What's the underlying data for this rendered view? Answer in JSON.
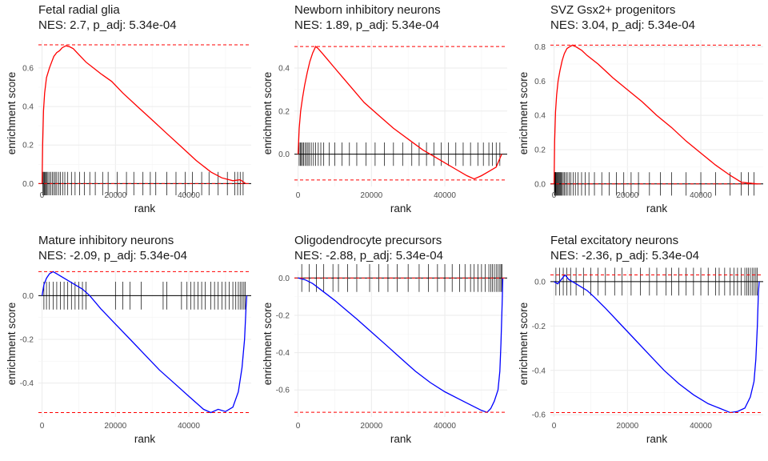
{
  "chart_data": [
    {
      "type": "line",
      "title": "Fetal radial glia",
      "subtitle": "NES: 2.7, p_adj: 5.34e-04",
      "xlabel": "rank",
      "ylabel": "enrichment score",
      "xlim": [
        -1000,
        57000
      ],
      "ylim": [
        -0.015,
        0.745
      ],
      "xticks": [
        0,
        20000,
        40000
      ],
      "yticks": [
        0.0,
        0.2,
        0.4,
        0.6
      ],
      "ytick_labels": [
        "0.0",
        "0.2",
        "0.4",
        "0.6"
      ],
      "min_es": 0.0,
      "max_es": 0.72,
      "curve_color": "#ff0000",
      "curve": [
        [
          0,
          0.0
        ],
        [
          150,
          0.2
        ],
        [
          400,
          0.38
        ],
        [
          700,
          0.47
        ],
        [
          1200,
          0.55
        ],
        [
          2000,
          0.6
        ],
        [
          2600,
          0.63
        ],
        [
          3200,
          0.66
        ],
        [
          4000,
          0.68
        ],
        [
          4800,
          0.69
        ],
        [
          5500,
          0.705
        ],
        [
          6500,
          0.715
        ],
        [
          7500,
          0.71
        ],
        [
          8500,
          0.7
        ],
        [
          10000,
          0.67
        ],
        [
          12000,
          0.63
        ],
        [
          14000,
          0.6
        ],
        [
          16000,
          0.57
        ],
        [
          19000,
          0.53
        ],
        [
          22000,
          0.47
        ],
        [
          26000,
          0.4
        ],
        [
          30000,
          0.33
        ],
        [
          34000,
          0.26
        ],
        [
          38000,
          0.19
        ],
        [
          42000,
          0.12
        ],
        [
          46000,
          0.06
        ],
        [
          49000,
          0.03
        ],
        [
          52000,
          0.015
        ],
        [
          54000,
          0.02
        ],
        [
          55500,
          0.0
        ]
      ],
      "gene_ranks": [
        200,
        400,
        600,
        800,
        1000,
        1300,
        1600,
        2000,
        2400,
        2800,
        3200,
        3600,
        4000,
        4500,
        5000,
        5600,
        6200,
        7000,
        8000,
        9000,
        10200,
        11500,
        13000,
        14500,
        16500,
        18000,
        20500,
        23000,
        25000,
        27500,
        29500,
        31000,
        34000,
        36500,
        39000,
        41000,
        43500,
        45500,
        48000,
        50500,
        52500,
        53300,
        54000,
        54800
      ]
    },
    {
      "type": "line",
      "title": "Newborn inhibitory neurons",
      "subtitle": "NES: 1.89, p_adj: 5.34e-04",
      "xlabel": "rank",
      "ylabel": "enrichment score",
      "xlim": [
        -1000,
        57000
      ],
      "ylim": [
        -0.15,
        0.53
      ],
      "xticks": [
        0,
        20000,
        40000
      ],
      "yticks": [
        0.0,
        0.2,
        0.4
      ],
      "ytick_labels": [
        "0.0",
        "0.2",
        "0.4"
      ],
      "min_es": -0.12,
      "max_es": 0.5,
      "curve_color": "#ff0000",
      "curve": [
        [
          0,
          0.0
        ],
        [
          300,
          0.12
        ],
        [
          700,
          0.2
        ],
        [
          1200,
          0.26
        ],
        [
          1800,
          0.32
        ],
        [
          2500,
          0.38
        ],
        [
          3200,
          0.43
        ],
        [
          4000,
          0.47
        ],
        [
          4800,
          0.5
        ],
        [
          5500,
          0.49
        ],
        [
          6500,
          0.47
        ],
        [
          8000,
          0.44
        ],
        [
          10000,
          0.4
        ],
        [
          12000,
          0.36
        ],
        [
          15000,
          0.3
        ],
        [
          18000,
          0.24
        ],
        [
          22000,
          0.18
        ],
        [
          26000,
          0.12
        ],
        [
          30000,
          0.07
        ],
        [
          34000,
          0.02
        ],
        [
          37000,
          -0.01
        ],
        [
          40000,
          -0.04
        ],
        [
          43000,
          -0.07
        ],
        [
          46000,
          -0.1
        ],
        [
          48000,
          -0.115
        ],
        [
          50000,
          -0.1
        ],
        [
          52000,
          -0.08
        ],
        [
          54000,
          -0.06
        ],
        [
          55500,
          0.0
        ]
      ],
      "gene_ranks": [
        300,
        600,
        900,
        1200,
        1500,
        1900,
        2300,
        2700,
        3100,
        3600,
        4200,
        4800,
        5500,
        6200,
        7000,
        8500,
        10000,
        12000,
        14000,
        16000,
        18500,
        21000,
        23500,
        26000,
        28500,
        31000,
        33000,
        35000,
        37000,
        39000,
        41000,
        43000,
        45000,
        47000,
        49000,
        50500,
        52000,
        53000,
        54000,
        55000
      ]
    },
    {
      "type": "line",
      "title": "SVZ Gsx2+ progenitors",
      "subtitle": "NES: 3.04, p_adj: 5.34e-04",
      "xlabel": "rank",
      "ylabel": "enrichment score",
      "xlim": [
        -1000,
        57000
      ],
      "ylim": [
        -0.015,
        0.84
      ],
      "xticks": [
        0,
        20000,
        40000
      ],
      "yticks": [
        0.0,
        0.2,
        0.4,
        0.6,
        0.8
      ],
      "ytick_labels": [
        "0.0",
        "0.2",
        "0.4",
        "0.6",
        "0.8"
      ],
      "min_es": 0.0,
      "max_es": 0.81,
      "curve_color": "#ff0000",
      "curve": [
        [
          0,
          0.0
        ],
        [
          150,
          0.25
        ],
        [
          400,
          0.42
        ],
        [
          700,
          0.52
        ],
        [
          1100,
          0.6
        ],
        [
          1600,
          0.66
        ],
        [
          2200,
          0.72
        ],
        [
          2800,
          0.76
        ],
        [
          3500,
          0.79
        ],
        [
          4200,
          0.8
        ],
        [
          5000,
          0.81
        ],
        [
          6000,
          0.8
        ],
        [
          7500,
          0.78
        ],
        [
          9000,
          0.75
        ],
        [
          12000,
          0.7
        ],
        [
          16000,
          0.62
        ],
        [
          20000,
          0.55
        ],
        [
          24000,
          0.48
        ],
        [
          28000,
          0.4
        ],
        [
          32000,
          0.33
        ],
        [
          36000,
          0.25
        ],
        [
          40000,
          0.18
        ],
        [
          44000,
          0.11
        ],
        [
          48000,
          0.05
        ],
        [
          51000,
          0.01
        ],
        [
          53000,
          0.005
        ],
        [
          55500,
          0.0
        ]
      ],
      "gene_ranks": [
        100,
        200,
        300,
        400,
        500,
        700,
        900,
        1100,
        1300,
        1500,
        1700,
        1900,
        2200,
        2500,
        2800,
        3200,
        3600,
        4100,
        4600,
        5200,
        5800,
        6500,
        7500,
        8500,
        9500,
        11000,
        13000,
        15000,
        17000,
        19000,
        21000,
        23000,
        26000,
        29000,
        32000,
        36000,
        40000,
        44000,
        48000,
        51000,
        53000,
        54500
      ]
    },
    {
      "type": "line",
      "title": "Mature inhibitory neurons",
      "subtitle": "NES: -2.09, p_adj: 5.34e-04",
      "xlabel": "rank",
      "ylabel": "enrichment score",
      "xlim": [
        -1000,
        57000
      ],
      "ylim": [
        -0.555,
        0.115
      ],
      "xticks": [
        0,
        20000,
        40000
      ],
      "yticks": [
        0.0,
        -0.2,
        -0.4
      ],
      "ytick_labels": [
        "0.0",
        "-0.2",
        "-0.4"
      ],
      "min_es": -0.535,
      "max_es": 0.11,
      "curve_color": "#0000ff",
      "curve": [
        [
          0,
          0.0
        ],
        [
          500,
          0.05
        ],
        [
          1200,
          0.08
        ],
        [
          2000,
          0.1
        ],
        [
          3000,
          0.11
        ],
        [
          4000,
          0.1
        ],
        [
          5000,
          0.09
        ],
        [
          7000,
          0.07
        ],
        [
          9000,
          0.05
        ],
        [
          11000,
          0.03
        ],
        [
          13000,
          0.0
        ],
        [
          16000,
          -0.06
        ],
        [
          20000,
          -0.13
        ],
        [
          24000,
          -0.2
        ],
        [
          28000,
          -0.27
        ],
        [
          32000,
          -0.34
        ],
        [
          36000,
          -0.4
        ],
        [
          40000,
          -0.46
        ],
        [
          44000,
          -0.52
        ],
        [
          46000,
          -0.535
        ],
        [
          48000,
          -0.52
        ],
        [
          50000,
          -0.53
        ],
        [
          52000,
          -0.51
        ],
        [
          53500,
          -0.44
        ],
        [
          54500,
          -0.33
        ],
        [
          55200,
          -0.2
        ],
        [
          55600,
          -0.05
        ],
        [
          55800,
          0.0
        ]
      ],
      "gene_ranks": [
        500,
        1200,
        2000,
        3000,
        4000,
        5000,
        6000,
        7000,
        8000,
        9000,
        10000,
        11000,
        12000,
        20000,
        22000,
        24000,
        27000,
        33000,
        34000,
        38000,
        39500,
        40500,
        41500,
        42500,
        43500,
        44500,
        46000,
        47000,
        48000,
        49000,
        50000,
        51000,
        52000,
        52800,
        53500,
        54000,
        54500,
        55000,
        55400
      ]
    },
    {
      "type": "line",
      "title": "Oligodendrocyte precursors",
      "subtitle": "NES: -2.88, p_adj: 5.34e-04",
      "xlabel": "rank",
      "ylabel": "enrichment score",
      "xlim": [
        -1000,
        57000
      ],
      "ylim": [
        -0.745,
        0.04
      ],
      "xticks": [
        0,
        20000,
        40000
      ],
      "yticks": [
        0.0,
        -0.2,
        -0.4,
        -0.6
      ],
      "ytick_labels": [
        "0.0",
        "-0.2",
        "-0.4",
        "-0.6"
      ],
      "min_es": -0.72,
      "max_es": 0.0,
      "curve_color": "#0000ff",
      "curve": [
        [
          0,
          0.0
        ],
        [
          2000,
          -0.01
        ],
        [
          4000,
          -0.03
        ],
        [
          6000,
          -0.06
        ],
        [
          8000,
          -0.09
        ],
        [
          10000,
          -0.12
        ],
        [
          13000,
          -0.17
        ],
        [
          16000,
          -0.22
        ],
        [
          20000,
          -0.29
        ],
        [
          24000,
          -0.36
        ],
        [
          28000,
          -0.43
        ],
        [
          32000,
          -0.5
        ],
        [
          36000,
          -0.56
        ],
        [
          40000,
          -0.61
        ],
        [
          44000,
          -0.65
        ],
        [
          48000,
          -0.69
        ],
        [
          50000,
          -0.71
        ],
        [
          51500,
          -0.72
        ],
        [
          52500,
          -0.7
        ],
        [
          53500,
          -0.66
        ],
        [
          54500,
          -0.6
        ],
        [
          55000,
          -0.5
        ],
        [
          55300,
          -0.35
        ],
        [
          55600,
          -0.15
        ],
        [
          55800,
          0.0
        ]
      ],
      "gene_ranks": [
        1000,
        3000,
        5000,
        7000,
        9500,
        11000,
        13500,
        16000,
        19500,
        22000,
        24500,
        27000,
        30000,
        33000,
        35500,
        38000,
        40000,
        42000,
        44000,
        45500,
        47000,
        48000,
        49000,
        50000,
        51000,
        52000,
        52500,
        53000,
        53500,
        54000,
        54500,
        55000,
        55300,
        55600
      ]
    },
    {
      "type": "line",
      "title": "Fetal excitatory neurons",
      "subtitle": "NES: -2.36, p_adj: 5.34e-04",
      "xlabel": "rank",
      "ylabel": "enrichment score",
      "xlim": [
        -1000,
        57000
      ],
      "ylim": [
        -0.61,
        0.05
      ],
      "xticks": [
        0,
        20000,
        40000
      ],
      "yticks": [
        0.0,
        -0.2,
        -0.4,
        -0.6
      ],
      "ytick_labels": [
        "0.0",
        "-0.2",
        "-0.4",
        "-0.6"
      ],
      "min_es": -0.59,
      "max_es": 0.03,
      "curve_color": "#0000ff",
      "curve": [
        [
          0,
          0.0
        ],
        [
          1000,
          -0.01
        ],
        [
          2000,
          0.01
        ],
        [
          3000,
          0.03
        ],
        [
          4000,
          0.01
        ],
        [
          5000,
          0.0
        ],
        [
          6000,
          -0.01
        ],
        [
          7000,
          -0.02
        ],
        [
          9000,
          -0.04
        ],
        [
          11000,
          -0.07
        ],
        [
          14000,
          -0.12
        ],
        [
          18000,
          -0.19
        ],
        [
          22000,
          -0.26
        ],
        [
          26000,
          -0.33
        ],
        [
          30000,
          -0.4
        ],
        [
          34000,
          -0.46
        ],
        [
          38000,
          -0.51
        ],
        [
          42000,
          -0.55
        ],
        [
          45000,
          -0.57
        ],
        [
          48000,
          -0.59
        ],
        [
          50000,
          -0.585
        ],
        [
          52000,
          -0.57
        ],
        [
          53500,
          -0.52
        ],
        [
          54500,
          -0.45
        ],
        [
          55000,
          -0.35
        ],
        [
          55400,
          -0.2
        ],
        [
          55700,
          -0.05
        ],
        [
          55900,
          0.0
        ]
      ],
      "gene_ranks": [
        500,
        1500,
        2500,
        3500,
        4500,
        6000,
        8000,
        10000,
        12000,
        14000,
        16500,
        18500,
        21000,
        23500,
        26000,
        28000,
        30500,
        32000,
        34000,
        36000,
        38000,
        40000,
        42000,
        44000,
        45000,
        46500,
        48000,
        49000,
        50000,
        51000,
        52000,
        52500,
        53000,
        53500,
        54000,
        54500,
        55000,
        55400
      ]
    }
  ]
}
